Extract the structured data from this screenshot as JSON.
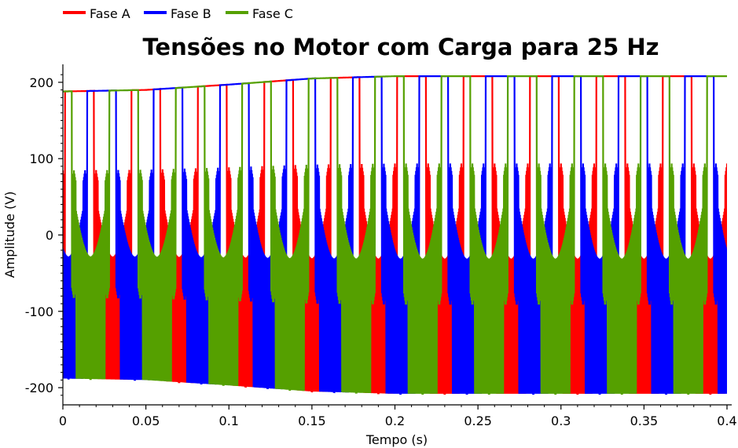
{
  "chart_data": {
    "type": "line",
    "title": "Tensões no Motor com Carga para 25 Hz",
    "xlabel": "Tempo (s)",
    "ylabel": "Amplitude (V)",
    "xlim": [
      0,
      0.4
    ],
    "ylim": [
      -220,
      220
    ],
    "xticks": [
      0,
      0.05,
      0.1,
      0.15,
      0.2,
      0.25,
      0.3,
      0.35,
      0.4
    ],
    "xtick_labels": [
      "0",
      "0.05",
      "0.1",
      "0.15",
      "0.2",
      "0.25",
      "0.3",
      "0.35",
      "0.4"
    ],
    "yticks": [
      -200,
      -100,
      0,
      100,
      200
    ],
    "ytick_labels": [
      "-200",
      "-100",
      "0",
      "100",
      "200"
    ],
    "legend_position": "top-left",
    "fundamental_frequency_hz": 25,
    "series": [
      {
        "name": "Fase A",
        "color": "#ff0000",
        "steady_amplitude": 208,
        "phase_deg": 0
      },
      {
        "name": "Fase B",
        "color": "#0000ff",
        "steady_amplitude": 208,
        "phase_deg": -120
      },
      {
        "name": "Fase C",
        "color": "#55a000",
        "steady_amplitude": 208,
        "phase_deg": 120
      }
    ],
    "envelope": {
      "x": [
        0,
        0.05,
        0.1,
        0.15,
        0.2,
        0.4
      ],
      "peak": [
        188,
        190,
        197,
        205,
        208,
        208
      ]
    }
  }
}
